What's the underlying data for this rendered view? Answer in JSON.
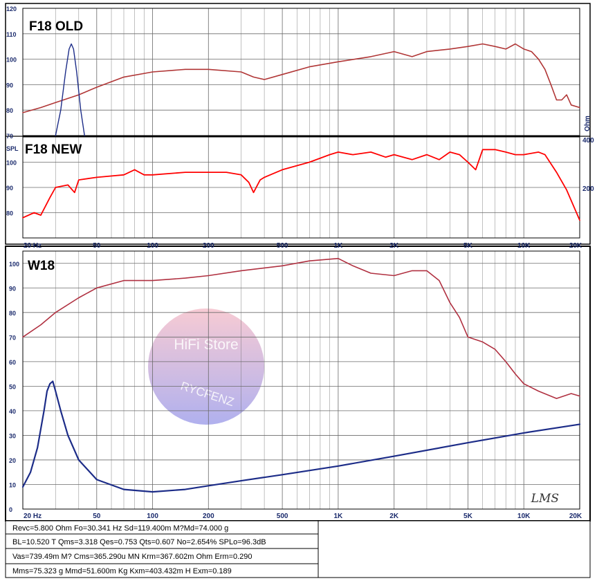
{
  "colors": {
    "spl_old": "#b03535",
    "spl_new": "#ff0000",
    "spl_w18": "#b03040",
    "imp": "#1c2c88",
    "grid": "#6a6a6a",
    "text": "#1a2a6c"
  },
  "watermark": {
    "line1": "HiFi  Store",
    "line2": "RYCFENZ"
  },
  "logo": "LMS",
  "chart_data": [
    {
      "type": "line",
      "title": "F18 OLD",
      "x_scale": "log",
      "xlim": [
        20,
        20000
      ],
      "ylim": [
        70,
        120
      ],
      "y_ticks": [
        "120",
        "110",
        "100",
        "90",
        "80",
        "70"
      ],
      "right_axis_label": "Ohm",
      "series": [
        {
          "values": [
            [
              20,
              79
            ],
            [
              25,
              81
            ],
            [
              30,
              83
            ],
            [
              40,
              86
            ],
            [
              50,
              89
            ],
            [
              70,
              93
            ],
            [
              100,
              95
            ],
            [
              150,
              96
            ],
            [
              200,
              96
            ],
            [
              300,
              95
            ],
            [
              350,
              93
            ],
            [
              400,
              92
            ],
            [
              500,
              94
            ],
            [
              700,
              97
            ],
            [
              1000,
              99
            ],
            [
              1500,
              101
            ],
            [
              2000,
              103
            ],
            [
              2500,
              101
            ],
            [
              3000,
              103
            ],
            [
              4000,
              104
            ],
            [
              5000,
              105
            ],
            [
              6000,
              106
            ],
            [
              7000,
              105
            ],
            [
              8000,
              104
            ],
            [
              9000,
              106
            ],
            [
              10000,
              104
            ],
            [
              11000,
              103
            ],
            [
              12000,
              100
            ],
            [
              13000,
              96
            ],
            [
              14000,
              90
            ],
            [
              15000,
              84
            ],
            [
              16000,
              84
            ],
            [
              17000,
              86
            ],
            [
              18000,
              82
            ],
            [
              20000,
              81
            ]
          ]
        },
        {
          "values": [
            [
              30,
              70
            ],
            [
              32,
              80
            ],
            [
              34,
              95
            ],
            [
              35.5,
              104
            ],
            [
              36.5,
              106
            ],
            [
              37.5,
              104
            ],
            [
              39,
              95
            ],
            [
              41,
              80
            ],
            [
              43,
              70
            ]
          ]
        }
      ]
    },
    {
      "type": "line",
      "title": "F18 NEW",
      "x_scale": "log",
      "xlim": [
        20,
        20000
      ],
      "ylim": [
        70,
        110
      ],
      "y_ticks": [
        "SPL",
        "100",
        "90",
        "80"
      ],
      "right_ticks": [
        "400",
        "200"
      ],
      "x_ticks": [
        "20  Hz",
        "50",
        "100",
        "200",
        "500",
        "1K",
        "2K",
        "5K",
        "10K",
        "20K"
      ],
      "series": [
        {
          "values": [
            [
              20,
              78
            ],
            [
              23,
              80
            ],
            [
              25,
              79
            ],
            [
              28,
              86
            ],
            [
              30,
              90
            ],
            [
              35,
              91
            ],
            [
              38,
              88
            ],
            [
              40,
              93
            ],
            [
              50,
              94
            ],
            [
              70,
              95
            ],
            [
              80,
              97
            ],
            [
              90,
              95
            ],
            [
              100,
              95
            ],
            [
              150,
              96
            ],
            [
              200,
              96
            ],
            [
              250,
              96
            ],
            [
              300,
              95
            ],
            [
              330,
              92
            ],
            [
              350,
              88
            ],
            [
              380,
              93
            ],
            [
              400,
              94
            ],
            [
              500,
              97
            ],
            [
              700,
              100
            ],
            [
              900,
              103
            ],
            [
              1000,
              104
            ],
            [
              1200,
              103
            ],
            [
              1500,
              104
            ],
            [
              1800,
              102
            ],
            [
              2000,
              103
            ],
            [
              2500,
              101
            ],
            [
              3000,
              103
            ],
            [
              3500,
              101
            ],
            [
              4000,
              104
            ],
            [
              4500,
              103
            ],
            [
              5000,
              100
            ],
            [
              5500,
              97
            ],
            [
              6000,
              105
            ],
            [
              7000,
              105
            ],
            [
              8000,
              104
            ],
            [
              9000,
              103
            ],
            [
              10000,
              103
            ],
            [
              12000,
              104
            ],
            [
              13000,
              103
            ],
            [
              15000,
              96
            ],
            [
              17000,
              89
            ],
            [
              20000,
              77
            ]
          ]
        }
      ]
    },
    {
      "type": "line",
      "title": "W18",
      "x_scale": "log",
      "xlim": [
        20,
        20000
      ],
      "ylim": [
        0,
        105
      ],
      "y_ticks": [
        "100",
        "90",
        "80",
        "70",
        "60",
        "50",
        "40",
        "30",
        "20",
        "10",
        "0"
      ],
      "x_ticks": [
        "20  Hz",
        "50",
        "100",
        "200",
        "500",
        "1K",
        "2K",
        "5K",
        "10K",
        "20K"
      ],
      "series": [
        {
          "values": [
            [
              20,
              70
            ],
            [
              25,
              75
            ],
            [
              30,
              80
            ],
            [
              40,
              86
            ],
            [
              50,
              90
            ],
            [
              70,
              93
            ],
            [
              100,
              93
            ],
            [
              150,
              94
            ],
            [
              200,
              95
            ],
            [
              300,
              97
            ],
            [
              500,
              99
            ],
            [
              700,
              101
            ],
            [
              1000,
              102
            ],
            [
              1200,
              99
            ],
            [
              1500,
              96
            ],
            [
              2000,
              95
            ],
            [
              2500,
              97
            ],
            [
              3000,
              97
            ],
            [
              3500,
              93
            ],
            [
              4000,
              84
            ],
            [
              4500,
              78
            ],
            [
              5000,
              70
            ],
            [
              6000,
              68
            ],
            [
              7000,
              65
            ],
            [
              8000,
              60
            ],
            [
              9000,
              55
            ],
            [
              10000,
              51
            ],
            [
              12000,
              48
            ],
            [
              15000,
              45
            ],
            [
              18000,
              47
            ],
            [
              20000,
              46
            ]
          ]
        },
        {
          "values": [
            [
              20,
              9
            ],
            [
              22,
              15
            ],
            [
              24,
              25
            ],
            [
              26,
              40
            ],
            [
              27,
              48
            ],
            [
              28,
              51
            ],
            [
              29,
              52
            ],
            [
              30,
              48
            ],
            [
              32,
              40
            ],
            [
              35,
              30
            ],
            [
              40,
              20
            ],
            [
              50,
              12
            ],
            [
              70,
              8
            ],
            [
              100,
              7
            ],
            [
              150,
              8
            ],
            [
              200,
              9.5
            ],
            [
              300,
              11.5
            ],
            [
              500,
              14
            ],
            [
              1000,
              17.5
            ],
            [
              2000,
              21.5
            ],
            [
              5000,
              27
            ],
            [
              10000,
              31
            ],
            [
              20000,
              34.5
            ]
          ]
        }
      ]
    }
  ],
  "params": [
    "Revc=5.800 Ohm  Fo=30.341 Hz  Sd=119.400m M?Md=74.000 g",
    "BL=10.520 T Qms=3.318  Qes=0.753  Qts=0.607  No=2.654% SPLo=96.3dB",
    "Vas=739.49m M? Cms=365.290u MN Krm=367.602m Ohm Erm=0.290",
    "Mms=75.323 g  Mmd=51.600m Kg  Kxm=403.432m H  Exm=0.189"
  ]
}
